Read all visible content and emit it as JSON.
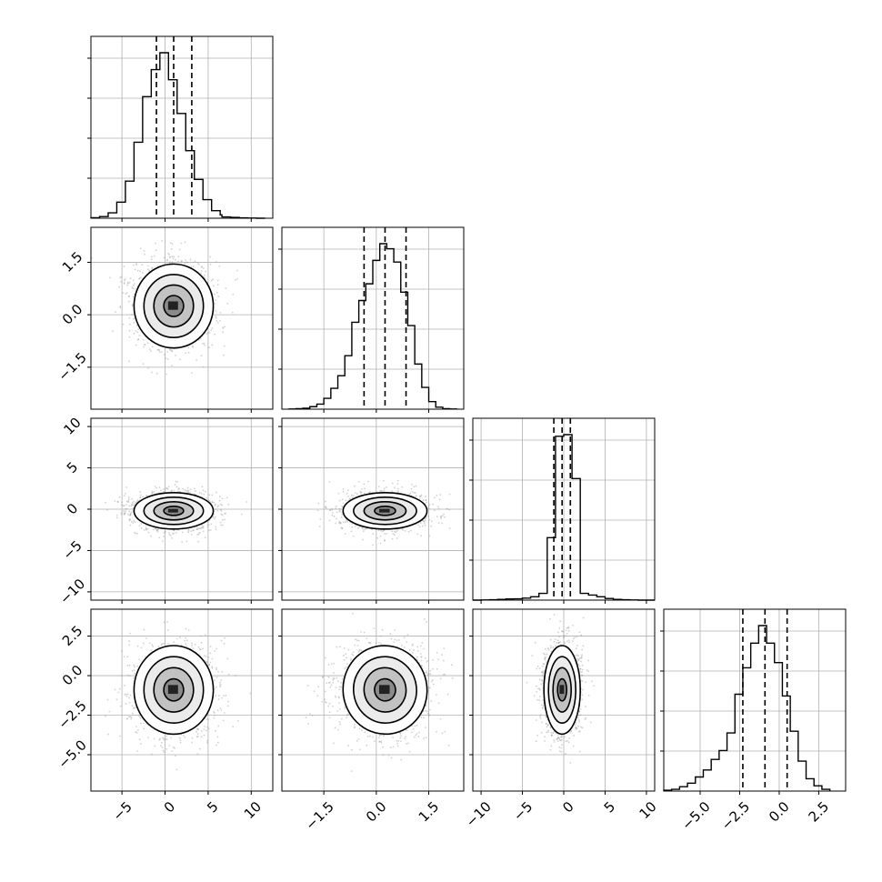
{
  "chart_data": {
    "type": "corner",
    "title": "",
    "parameters": [
      {
        "name": "",
        "range": [
          -8.6,
          12.5
        ],
        "ticks": [
          -5,
          0,
          5,
          10
        ],
        "tick_labels": [
          "−5",
          "0",
          "5",
          "10"
        ]
      },
      {
        "name": "",
        "range": [
          -2.7,
          2.5
        ],
        "ticks": [
          -1.5,
          0.0,
          1.5
        ],
        "tick_labels": [
          "−1.5",
          "0.0",
          "1.5"
        ]
      },
      {
        "name": "",
        "range": [
          -11,
          11
        ],
        "ticks": [
          -10,
          -5,
          0,
          5,
          10
        ],
        "tick_labels": [
          "−10",
          "−5",
          "0",
          "5",
          "10"
        ]
      },
      {
        "name": "",
        "range": [
          -7.3,
          4.2
        ],
        "ticks": [
          -5.0,
          -2.5,
          0.0,
          2.5
        ],
        "tick_labels": [
          "−5.0",
          "−2.5",
          "0.0",
          "2.5"
        ]
      }
    ],
    "histograms": [
      {
        "param": 0,
        "bin_edges": [
          -8.6,
          -7.6,
          -6.6,
          -5.6,
          -4.6,
          -3.6,
          -2.6,
          -1.6,
          -0.6,
          0.4,
          1.4,
          2.4,
          3.4,
          4.4,
          5.4,
          6.4,
          6.6,
          7.6,
          8.6,
          9.6,
          10.6,
          11.6
        ],
        "counts": [
          0.3,
          1.0,
          3.2,
          9.5,
          22.0,
          45.0,
          72.0,
          88.0,
          98.0,
          82.0,
          62.0,
          40.0,
          23.0,
          11.0,
          4.5,
          2.0,
          0.8,
          0.5,
          0.2,
          0.1,
          0.0
        ],
        "quantiles": [
          -1.0,
          1.0,
          3.1
        ]
      },
      {
        "param": 1,
        "bin_edges": [
          -2.5,
          -2.3,
          -2.1,
          -1.9,
          -1.7,
          -1.5,
          -1.3,
          -1.1,
          -0.9,
          -0.7,
          -0.5,
          -0.3,
          -0.1,
          0.1,
          0.3,
          0.5,
          0.7,
          0.9,
          1.1,
          1.3,
          1.5,
          1.7,
          1.9,
          2.1,
          2.3
        ],
        "counts": [
          0.1,
          0.3,
          0.6,
          1.5,
          3.0,
          6.5,
          12.5,
          20.0,
          32.0,
          52.0,
          65.0,
          75.0,
          89.0,
          99.0,
          96.0,
          88.0,
          70.0,
          50.0,
          27.0,
          13.0,
          4.5,
          1.2,
          0.3,
          0.1
        ],
        "quantiles": [
          -0.35,
          0.25,
          0.85
        ]
      },
      {
        "param": 2,
        "bin_edges": [
          -11.0,
          -10.0,
          -9.0,
          -8.0,
          -7.0,
          -6.0,
          -5.0,
          -4.0,
          -3.0,
          -2.0,
          -1.0,
          0.0,
          1.0,
          2.0,
          3.0,
          4.0,
          5.0,
          6.0,
          7.0,
          8.0,
          9.0,
          10.0,
          11.0
        ],
        "counts": [
          0.0,
          0.1,
          0.2,
          0.4,
          0.7,
          0.8,
          1.2,
          2.0,
          4.0,
          37.0,
          97.0,
          98.0,
          72.0,
          4.0,
          3.0,
          2.0,
          1.0,
          0.4,
          0.2,
          0.1,
          0.0,
          0.0
        ],
        "quantiles": [
          -1.2,
          -0.2,
          0.8
        ]
      },
      {
        "param": 3,
        "bin_edges": [
          -7.3,
          -6.8,
          -6.3,
          -5.8,
          -5.3,
          -4.8,
          -4.3,
          -3.8,
          -3.3,
          -2.8,
          -2.3,
          -1.8,
          -1.3,
          -0.8,
          -0.3,
          0.2,
          0.7,
          1.2,
          1.7,
          2.2,
          2.7,
          3.2
        ],
        "counts": [
          0.5,
          1.0,
          2.5,
          4.5,
          8.0,
          12.0,
          18.0,
          23.0,
          33.0,
          55.0,
          70.0,
          84.0,
          94.0,
          84.0,
          73.0,
          54.0,
          34.0,
          17.0,
          7.0,
          3.0,
          1.0
        ],
        "quantiles": [
          -2.3,
          -0.9,
          0.5
        ]
      }
    ],
    "pairs": [
      {
        "x_param": 0,
        "y_param": 1,
        "mean": [
          1.0,
          0.25
        ],
        "sd": [
          2.3,
          0.6
        ],
        "rotation_deg": 0
      },
      {
        "x_param": 0,
        "y_param": 2,
        "mean": [
          1.0,
          -0.2
        ],
        "sd": [
          2.3,
          1.1
        ],
        "rotation_deg": 0
      },
      {
        "x_param": 1,
        "y_param": 2,
        "mean": [
          0.25,
          -0.2
        ],
        "sd": [
          0.6,
          1.1
        ],
        "rotation_deg": 0
      },
      {
        "x_param": 0,
        "y_param": 3,
        "mean": [
          1.0,
          -0.9
        ],
        "sd": [
          2.3,
          1.4
        ],
        "rotation_deg": 0
      },
      {
        "x_param": 1,
        "y_param": 3,
        "mean": [
          0.25,
          -0.9
        ],
        "sd": [
          0.6,
          1.4
        ],
        "rotation_deg": -8
      },
      {
        "x_param": 2,
        "y_param": 3,
        "mean": [
          -0.2,
          -0.9
        ],
        "sd": [
          1.1,
          1.4
        ],
        "rotation_deg": 0
      }
    ],
    "contour_levels_sigma": [
      0.5,
      1.0,
      1.5,
      2.0
    ],
    "grid": true,
    "quantile_line_style": "dashed",
    "colors": {
      "line": "#000000",
      "grid": "#b0b0b0",
      "scatter": "#999999"
    }
  }
}
